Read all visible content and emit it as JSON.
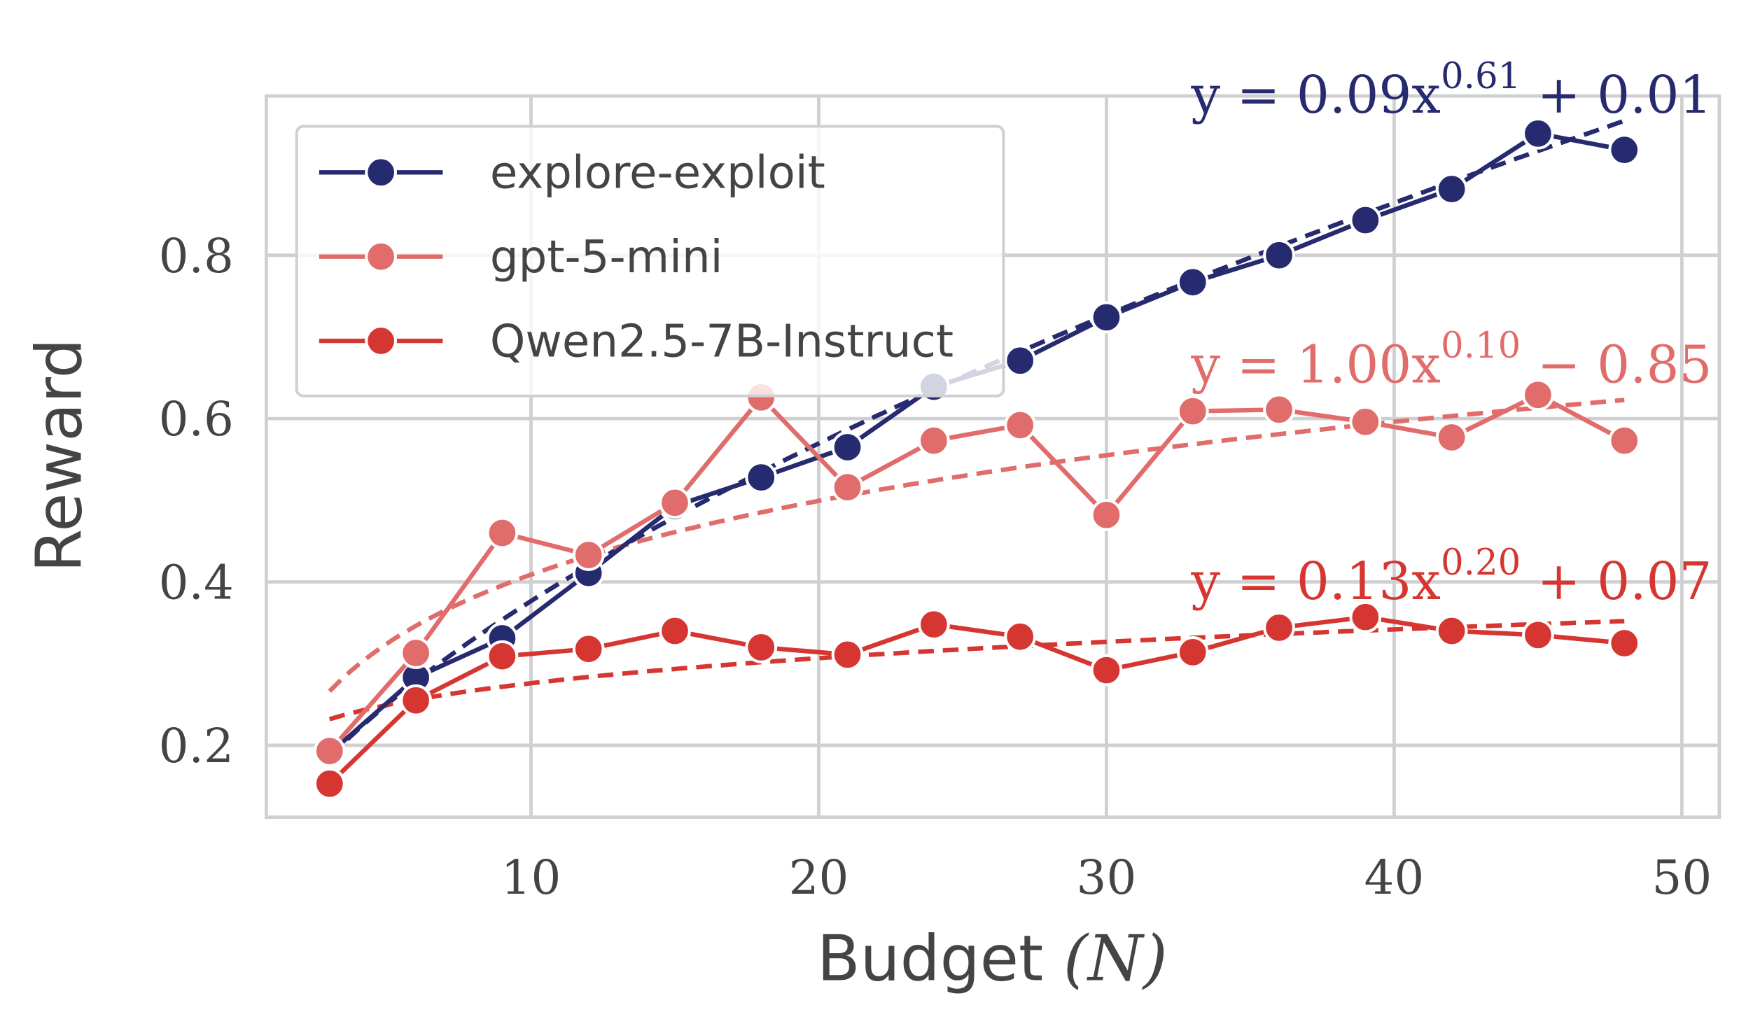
{
  "chart_data": {
    "type": "line",
    "xlabel": "Budget",
    "xlabel_var": "(N)",
    "ylabel": "Reward",
    "xlim": [
      0.8,
      51.3
    ],
    "ylim": [
      0.112,
      0.995
    ],
    "xticks": [
      10,
      20,
      30,
      40,
      50
    ],
    "yticks": [
      0.2,
      0.4,
      0.6,
      0.8
    ],
    "xtick_labels": [
      "10",
      "20",
      "30",
      "40",
      "50"
    ],
    "ytick_labels": [
      "0.2",
      "0.4",
      "0.6",
      "0.8"
    ],
    "grid": true,
    "legend_position": "top-left",
    "x": [
      3,
      6,
      9,
      12,
      15,
      18,
      21,
      24,
      27,
      30,
      33,
      36,
      39,
      42,
      45,
      48
    ],
    "series": [
      {
        "name": "explore-exploit",
        "color": "#262a6e",
        "values": [
          0.19,
          0.283,
          0.331,
          0.411,
          0.493,
          0.528,
          0.565,
          0.639,
          0.671,
          0.724,
          0.767,
          0.8,
          0.843,
          0.881,
          0.949,
          0.929
        ],
        "fit": {
          "a": 0.09,
          "b": 0.61,
          "c": 0.01,
          "label_main": "y = 0.09x",
          "label_exp": "0.61",
          "label_tail": " + 0.01"
        }
      },
      {
        "name": "gpt-5-mini",
        "color": "#e06c6b",
        "values": [
          0.193,
          0.313,
          0.46,
          0.433,
          0.497,
          0.626,
          0.516,
          0.573,
          0.592,
          0.482,
          0.609,
          0.611,
          0.596,
          0.577,
          0.629,
          0.573
        ],
        "fit": {
          "a": 1.0,
          "b": 0.1,
          "c": -0.85,
          "label_main": "y = 1.00x",
          "label_exp": "0.10",
          "label_tail": " − 0.85"
        }
      },
      {
        "name": "Qwen2.5-7B-Instruct",
        "color": "#d63631",
        "values": [
          0.153,
          0.255,
          0.309,
          0.318,
          0.34,
          0.32,
          0.311,
          0.348,
          0.333,
          0.292,
          0.314,
          0.344,
          0.357,
          0.34,
          0.335,
          0.325
        ],
        "fit": {
          "a": 0.13,
          "b": 0.2,
          "c": 0.07,
          "label_main": "y = 0.13x",
          "label_exp": "0.20",
          "label_tail": " + 0.07"
        }
      }
    ]
  }
}
